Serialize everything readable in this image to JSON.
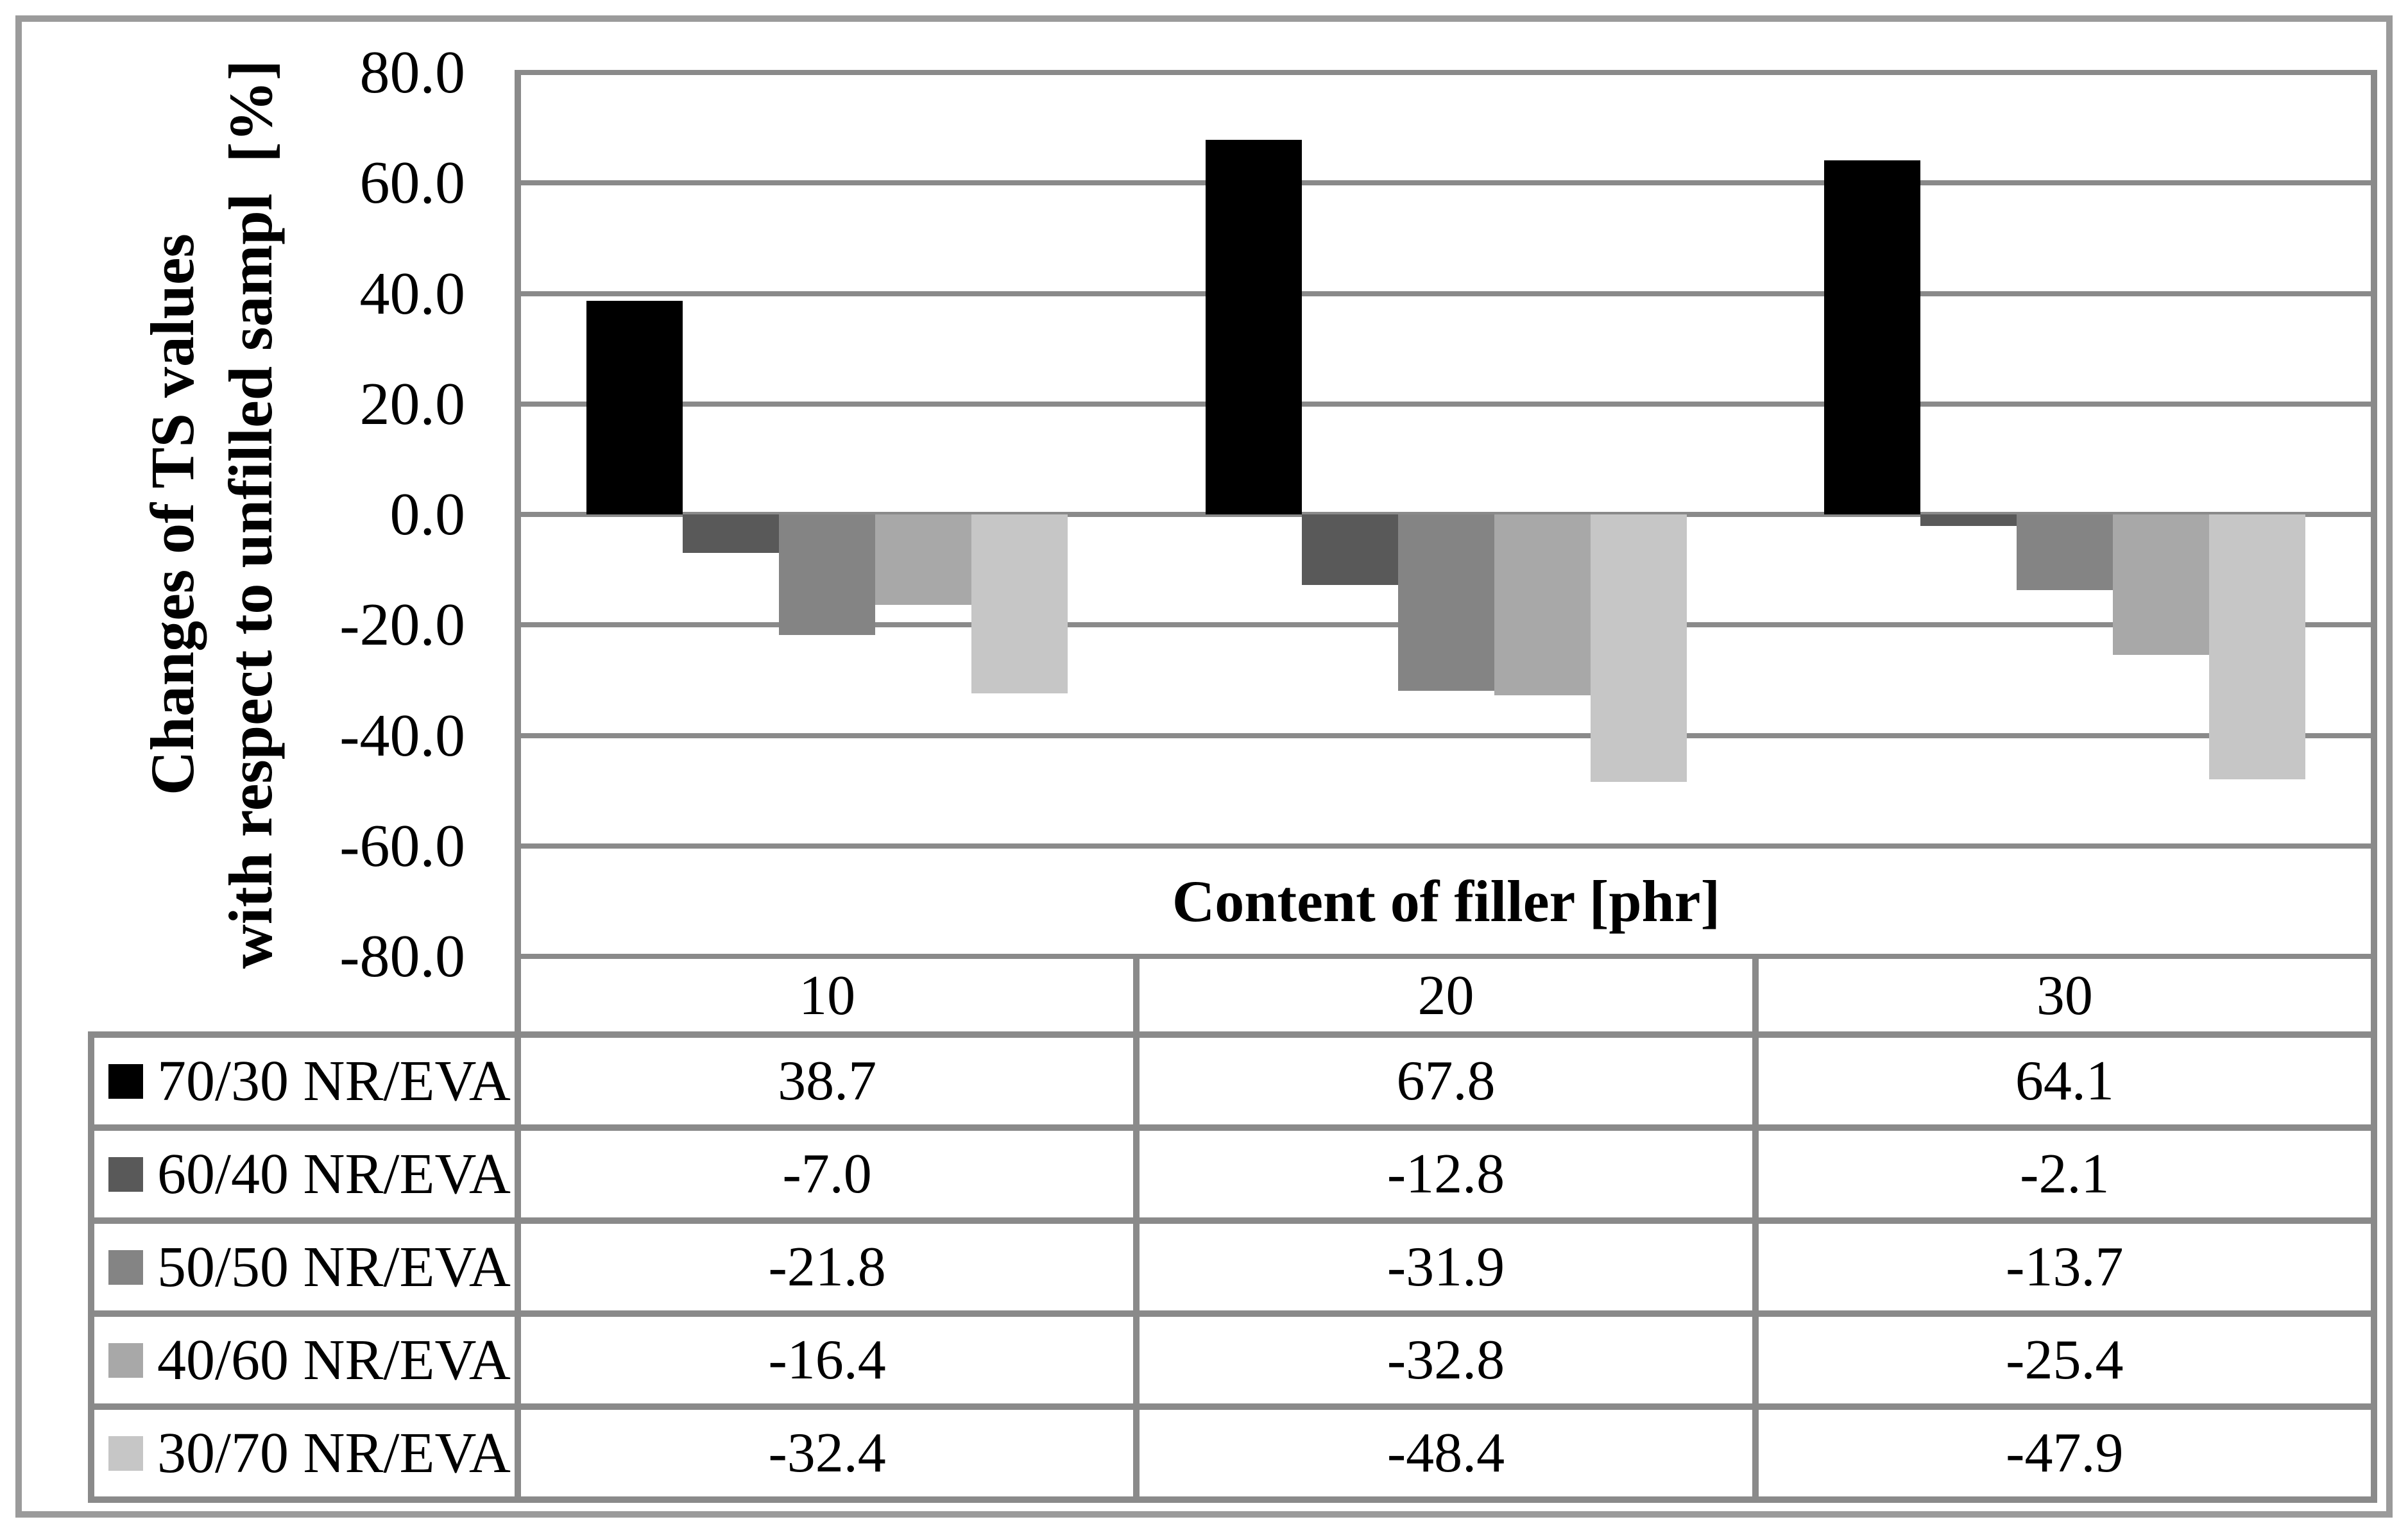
{
  "figure": {
    "background": "#ffffff",
    "frame_color": "#9b9b9b"
  },
  "y_axis": {
    "title_line1": "Changes of TS values",
    "title_line2": "with respect to unfilled sampl  [%]",
    "ticks": [
      "80.0",
      "60.0",
      "40.0",
      "20.0",
      "0.0",
      "-20.0",
      "-40.0",
      "-60.0",
      "-80.0"
    ]
  },
  "x_axis": {
    "title": "Content of filler [phr]",
    "categories": [
      "10",
      "20",
      "30"
    ]
  },
  "chart_data": {
    "type": "bar",
    "title": "",
    "xlabel": "Content of filler [phr]",
    "ylabel": "Changes of TS values with respect to unfilled sampl [%]",
    "categories": [
      "10",
      "20",
      "30"
    ],
    "ylim": [
      -80,
      80
    ],
    "ytick_step": 20,
    "grid": true,
    "legend_position": "table-left",
    "series": [
      {
        "name": "70/30 NR/EVA",
        "color": "#000000",
        "values": [
          38.7,
          67.8,
          64.1
        ],
        "display": [
          "38.7",
          "67.8",
          "64.1"
        ]
      },
      {
        "name": "60/40 NR/EVA",
        "color": "#595959",
        "values": [
          -7.0,
          -12.8,
          -2.1
        ],
        "display": [
          "-7.0",
          "-12.8",
          "-2.1"
        ]
      },
      {
        "name": "50/50 NR/EVA",
        "color": "#848484",
        "values": [
          -21.8,
          -31.9,
          -13.7
        ],
        "display": [
          "-21.8",
          "-31.9",
          "-13.7"
        ]
      },
      {
        "name": "40/60 NR/EVA",
        "color": "#a8a8a8",
        "values": [
          -16.4,
          -32.8,
          -25.4
        ],
        "display": [
          "-16.4",
          "-32.8",
          "-25.4"
        ]
      },
      {
        "name": "30/70 NR/EVA",
        "color": "#c6c6c6",
        "values": [
          -32.4,
          -48.4,
          -47.9
        ],
        "display": [
          "-32.4",
          "-48.4",
          "-47.9"
        ]
      }
    ],
    "colors": {
      "gridline": "#8a8a8a",
      "table_border": "#8a8a8a",
      "text": "#000000"
    }
  }
}
